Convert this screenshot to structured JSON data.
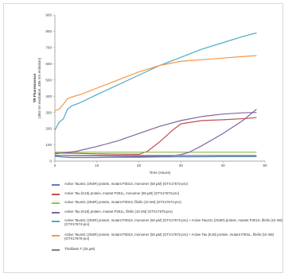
{
  "chart_data": {
    "type": "line",
    "title": "",
    "xlabel": "Time (Hours)",
    "ylabel": "TR Fluorescence",
    "ylabel_sub": "(450 nm excitation, 485 nm emission)",
    "xlim": [
      0,
      50
    ],
    "ylim": [
      0,
      900
    ],
    "xticks": [
      0,
      10,
      20,
      30,
      40,
      50
    ],
    "yticks": [
      0,
      100,
      200,
      300,
      400,
      500,
      600,
      700,
      800,
      900
    ],
    "grid": false,
    "legend_position": "bottom",
    "series": [
      {
        "name": "Active Tau441 (2N4R) protein, mutant P301S, monomer (50 µM) (GTX17672-pro)",
        "color": "#4f81bd",
        "x": [
          0,
          2,
          4,
          6,
          10,
          15,
          20,
          25,
          30,
          35,
          40,
          45,
          48
        ],
        "y": [
          30,
          25,
          22,
          22,
          22,
          24,
          24,
          26,
          27,
          27,
          28,
          28,
          28
        ]
      },
      {
        "name": "Active Tau (K18) protein, mutant P301L, monomer (50 µM) (GTX17673-pro)",
        "color": "#c0504d",
        "x": [
          0,
          5,
          10,
          15,
          20,
          22,
          25,
          28,
          30,
          35,
          40,
          45,
          48
        ],
        "y": [
          50,
          48,
          45,
          43,
          42,
          60,
          120,
          190,
          230,
          250,
          255,
          262,
          268
        ]
      },
      {
        "name": "Active Tau441 (2N4R) protein, mutant P301S, fibrils (10 nM) (GTX17674-pro)",
        "color": "#9bbb59",
        "x": [
          0,
          10,
          20,
          30,
          40,
          48
        ],
        "y": [
          55,
          55,
          55,
          55,
          55,
          55
        ]
      },
      {
        "name": "Active Tau (K18) protein, mutant P301L, fibrils (10 nM) (GTX17675-pro)",
        "color": "#8064a2",
        "x": [
          0,
          10,
          20,
          25,
          28,
          30,
          32,
          35,
          40,
          45,
          48
        ],
        "y": [
          35,
          32,
          30,
          30,
          33,
          40,
          55,
          95,
          170,
          255,
          320
        ]
      },
      {
        "name": "Active Tau441 (2N4R) protein, mutant P301S, monomer (50 µM) (GTX17672-pro) + Active Tau441 (2N4R) protein, mutant P301S, fibrils (10 nM) (GTX17674-pro)",
        "color": "#4bacc6",
        "x": [
          0,
          1,
          2,
          3,
          4,
          6,
          10,
          15,
          20,
          25,
          30,
          35,
          40,
          45,
          48
        ],
        "y": [
          190,
          240,
          260,
          320,
          340,
          360,
          410,
          470,
          530,
          590,
          640,
          690,
          730,
          770,
          790
        ]
      },
      {
        "name": "Active Tau441 (2N4R) protein, mutant P301S, monomer (50 µM) (GTX17672-pro) + Active Tau (K18) protein, mutant P301L, fibrils (10 nM) (GTX17675-pro)",
        "color": "#f79646",
        "x": [
          0,
          1,
          2,
          3,
          4,
          6,
          10,
          15,
          20,
          25,
          30,
          35,
          40,
          45,
          48
        ],
        "y": [
          310,
          320,
          350,
          385,
          395,
          410,
          450,
          500,
          550,
          590,
          615,
          625,
          635,
          645,
          650
        ]
      },
      {
        "name": "Thioflavin T (25 µM)",
        "color": "#7f7f7f",
        "x": [
          0,
          10,
          20,
          30,
          40,
          48
        ],
        "y": [
          35,
          35,
          35,
          35,
          35,
          35
        ]
      },
      {
        "name": "",
        "color": "#8064a2",
        "x": [
          0,
          5,
          10,
          15,
          20,
          25,
          30,
          35,
          40,
          45,
          48
        ],
        "y": [
          45,
          60,
          90,
          125,
          170,
          215,
          250,
          275,
          290,
          298,
          300
        ]
      }
    ]
  }
}
